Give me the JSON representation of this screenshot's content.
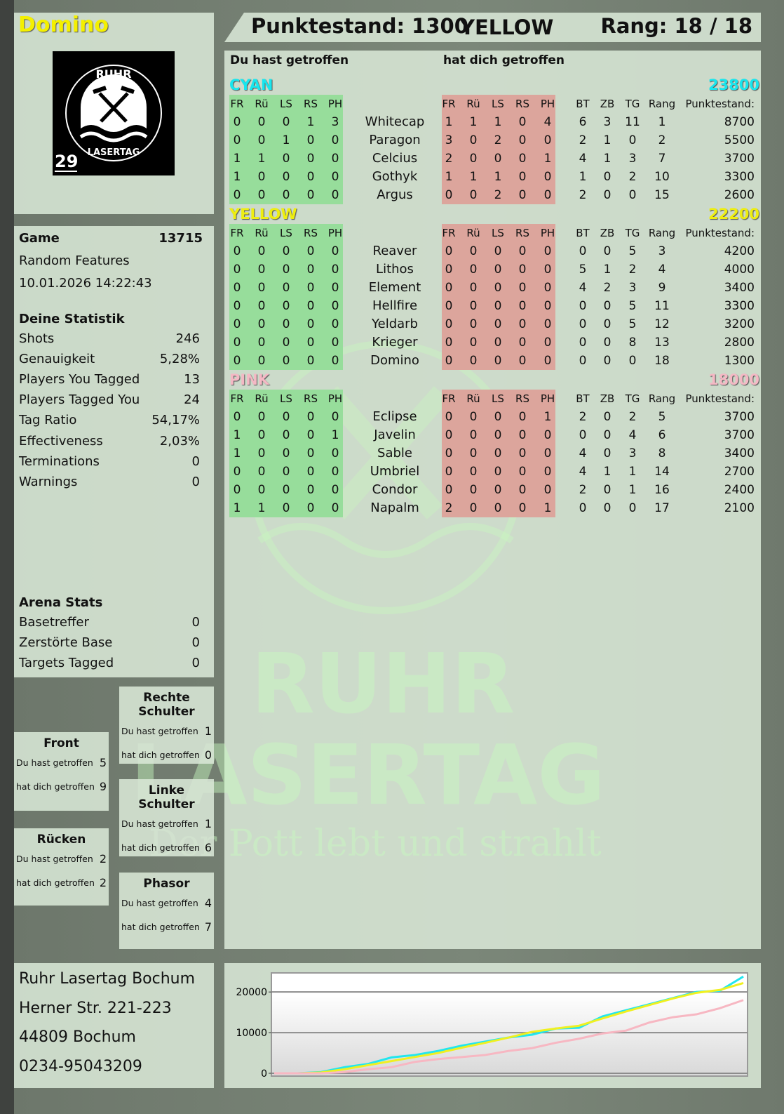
{
  "player": {
    "name": "Domino",
    "logo_text": "RUHR LASERTAG",
    "logo_number": "29"
  },
  "header": {
    "score": "Punktestand: 1300",
    "team": "YELLOW",
    "rank": "Rang: 18 / 18"
  },
  "watermark": {
    "line1": "RUHR",
    "line2": "LASERTAG",
    "slogan": "Der Pott lebt und strahlt"
  },
  "game": {
    "label": "Game",
    "id": "13715",
    "mode": "Random Features",
    "datetime": "10.01.2026 14:22:43"
  },
  "stats": {
    "title": "Deine Statistik",
    "items": [
      {
        "label": "Shots",
        "value": "246"
      },
      {
        "label": "Genauigkeit",
        "value": "5,28%"
      },
      {
        "label": "Players You Tagged",
        "value": "13"
      },
      {
        "label": "Players Tagged You",
        "value": "24"
      },
      {
        "label": "Tag Ratio",
        "value": "54,17%"
      },
      {
        "label": "Effectiveness",
        "value": "2,03%"
      },
      {
        "label": "Terminations",
        "value": "0"
      },
      {
        "label": "Warnings",
        "value": "0"
      }
    ]
  },
  "arena": {
    "title": "Arena Stats",
    "items": [
      {
        "label": "Basetreffer",
        "value": "0"
      },
      {
        "label": "Zerstörte Base",
        "value": "0"
      },
      {
        "label": "Targets Tagged",
        "value": "0"
      }
    ]
  },
  "zones": [
    {
      "title": "Rechte Schulter",
      "you_hit_label": "Du hast getroffen",
      "you_hit": "1",
      "hit_you_label": "hat dich getroffen",
      "hit_you": "0"
    },
    {
      "title": "Front",
      "you_hit_label": "Du hast getroffen",
      "you_hit": "5",
      "hit_you_label": "hat dich getroffen",
      "hit_you": "9"
    },
    {
      "title": "Linke Schulter",
      "you_hit_label": "Du hast getroffen",
      "you_hit": "1",
      "hit_you_label": "hat dich getroffen",
      "hit_you": "6"
    },
    {
      "title": "Rücken",
      "you_hit_label": "Du hast getroffen",
      "you_hit": "2",
      "hit_you_label": "hat dich getroffen",
      "hit_you": "2"
    },
    {
      "title": "Phasor",
      "you_hit_label": "Du hast getroffen",
      "you_hit": "4",
      "hit_you_label": "hat dich getroffen",
      "hit_you": "7"
    }
  ],
  "address": [
    "Ruhr Lasertag Bochum",
    "Herner Str. 221-223",
    "44809 Bochum",
    "0234-95043209"
  ],
  "table": {
    "you_hit_title": "Du hast getroffen",
    "hit_you_title": "hat dich getroffen",
    "hit_cols": [
      "FR",
      "Rü",
      "LS",
      "RS",
      "PH"
    ],
    "stat_cols": [
      "BT",
      "ZB",
      "TG",
      "Rang"
    ],
    "score_col": "Punktestand:",
    "colors": {
      "green": "#97dd9b",
      "red": "#dca59c"
    },
    "teams": [
      {
        "name": "CYAN",
        "score": "23800",
        "color": "#18e6ee",
        "players": [
          {
            "name": "Whitecap",
            "you_hit": [
              "0",
              "0",
              "0",
              "1",
              "3"
            ],
            "hit_you": [
              "1",
              "1",
              "1",
              "0",
              "4"
            ],
            "stats": [
              "6",
              "3",
              "11",
              "1"
            ],
            "score": "8700"
          },
          {
            "name": "Paragon",
            "you_hit": [
              "0",
              "0",
              "1",
              "0",
              "0"
            ],
            "hit_you": [
              "3",
              "0",
              "2",
              "0",
              "0"
            ],
            "stats": [
              "2",
              "1",
              "0",
              "2"
            ],
            "score": "5500"
          },
          {
            "name": "Celcius",
            "you_hit": [
              "1",
              "1",
              "0",
              "0",
              "0"
            ],
            "hit_you": [
              "2",
              "0",
              "0",
              "0",
              "1"
            ],
            "stats": [
              "4",
              "1",
              "3",
              "7"
            ],
            "score": "3700"
          },
          {
            "name": "Gothyk",
            "you_hit": [
              "1",
              "0",
              "0",
              "0",
              "0"
            ],
            "hit_you": [
              "1",
              "1",
              "1",
              "0",
              "0"
            ],
            "stats": [
              "1",
              "0",
              "2",
              "10"
            ],
            "score": "3300"
          },
          {
            "name": "Argus",
            "you_hit": [
              "0",
              "0",
              "0",
              "0",
              "0"
            ],
            "hit_you": [
              "0",
              "0",
              "2",
              "0",
              "0"
            ],
            "stats": [
              "2",
              "0",
              "0",
              "15"
            ],
            "score": "2600"
          }
        ]
      },
      {
        "name": "YELLOW",
        "score": "22200",
        "color": "#eeee10",
        "players": [
          {
            "name": "Reaver",
            "you_hit": [
              "0",
              "0",
              "0",
              "0",
              "0"
            ],
            "hit_you": [
              "0",
              "0",
              "0",
              "0",
              "0"
            ],
            "stats": [
              "0",
              "0",
              "5",
              "3"
            ],
            "score": "4200"
          },
          {
            "name": "Lithos",
            "you_hit": [
              "0",
              "0",
              "0",
              "0",
              "0"
            ],
            "hit_you": [
              "0",
              "0",
              "0",
              "0",
              "0"
            ],
            "stats": [
              "5",
              "1",
              "2",
              "4"
            ],
            "score": "4000"
          },
          {
            "name": "Element",
            "you_hit": [
              "0",
              "0",
              "0",
              "0",
              "0"
            ],
            "hit_you": [
              "0",
              "0",
              "0",
              "0",
              "0"
            ],
            "stats": [
              "4",
              "2",
              "3",
              "9"
            ],
            "score": "3400"
          },
          {
            "name": "Hellfire",
            "you_hit": [
              "0",
              "0",
              "0",
              "0",
              "0"
            ],
            "hit_you": [
              "0",
              "0",
              "0",
              "0",
              "0"
            ],
            "stats": [
              "0",
              "0",
              "5",
              "11"
            ],
            "score": "3300"
          },
          {
            "name": "Yeldarb",
            "you_hit": [
              "0",
              "0",
              "0",
              "0",
              "0"
            ],
            "hit_you": [
              "0",
              "0",
              "0",
              "0",
              "0"
            ],
            "stats": [
              "0",
              "0",
              "5",
              "12"
            ],
            "score": "3200"
          },
          {
            "name": "Krieger",
            "you_hit": [
              "0",
              "0",
              "0",
              "0",
              "0"
            ],
            "hit_you": [
              "0",
              "0",
              "0",
              "0",
              "0"
            ],
            "stats": [
              "0",
              "0",
              "8",
              "13"
            ],
            "score": "2800"
          },
          {
            "name": "Domino",
            "you_hit": [
              "0",
              "0",
              "0",
              "0",
              "0"
            ],
            "hit_you": [
              "0",
              "0",
              "0",
              "0",
              "0"
            ],
            "stats": [
              "0",
              "0",
              "0",
              "18"
            ],
            "score": "1300"
          }
        ]
      },
      {
        "name": "PINK",
        "score": "18000",
        "color": "#f4b8c4",
        "players": [
          {
            "name": "Eclipse",
            "you_hit": [
              "0",
              "0",
              "0",
              "0",
              "0"
            ],
            "hit_you": [
              "0",
              "0",
              "0",
              "0",
              "1"
            ],
            "stats": [
              "2",
              "0",
              "2",
              "5"
            ],
            "score": "3700"
          },
          {
            "name": "Javelin",
            "you_hit": [
              "1",
              "0",
              "0",
              "0",
              "1"
            ],
            "hit_you": [
              "0",
              "0",
              "0",
              "0",
              "0"
            ],
            "stats": [
              "0",
              "0",
              "4",
              "6"
            ],
            "score": "3700"
          },
          {
            "name": "Sable",
            "you_hit": [
              "1",
              "0",
              "0",
              "0",
              "0"
            ],
            "hit_you": [
              "0",
              "0",
              "0",
              "0",
              "0"
            ],
            "stats": [
              "4",
              "0",
              "3",
              "8"
            ],
            "score": "3400"
          },
          {
            "name": "Umbriel",
            "you_hit": [
              "0",
              "0",
              "0",
              "0",
              "0"
            ],
            "hit_you": [
              "0",
              "0",
              "0",
              "0",
              "0"
            ],
            "stats": [
              "4",
              "1",
              "1",
              "14"
            ],
            "score": "2700"
          },
          {
            "name": "Condor",
            "you_hit": [
              "0",
              "0",
              "0",
              "0",
              "0"
            ],
            "hit_you": [
              "0",
              "0",
              "0",
              "0",
              "0"
            ],
            "stats": [
              "2",
              "0",
              "1",
              "16"
            ],
            "score": "2400"
          },
          {
            "name": "Napalm",
            "you_hit": [
              "1",
              "1",
              "0",
              "0",
              "0"
            ],
            "hit_you": [
              "2",
              "0",
              "0",
              "0",
              "1"
            ],
            "stats": [
              "0",
              "0",
              "0",
              "17"
            ],
            "score": "2100"
          }
        ]
      }
    ]
  },
  "chart_data": {
    "type": "line",
    "ylim": [
      0,
      24000
    ],
    "yticks": [
      0,
      10000,
      20000
    ],
    "yticklabels": [
      "0",
      "10000",
      "20000"
    ],
    "grid": true,
    "x": [
      0,
      1,
      2,
      3,
      4,
      5,
      6,
      7,
      8,
      9,
      10,
      11,
      12,
      13,
      14,
      15,
      16,
      17,
      18,
      19,
      20
    ],
    "series": [
      {
        "color": "#22e6ee",
        "values": [
          0,
          0,
          300,
          1500,
          2300,
          3900,
          4500,
          5500,
          6800,
          7800,
          8800,
          9500,
          11000,
          11200,
          14000,
          15500,
          17000,
          18500,
          20000,
          20300,
          23800
        ]
      },
      {
        "color": "#f0f020",
        "values": [
          0,
          0,
          200,
          1000,
          2000,
          3000,
          4000,
          5000,
          6300,
          7500,
          8800,
          10200,
          11000,
          11700,
          13500,
          15200,
          16800,
          18400,
          19800,
          20500,
          22200
        ]
      },
      {
        "color": "#f7b7c2",
        "values": [
          0,
          0,
          0,
          300,
          1000,
          1500,
          2800,
          3500,
          4000,
          4500,
          5500,
          6200,
          7500,
          8500,
          9800,
          10500,
          12500,
          13800,
          14500,
          16000,
          18000
        ]
      }
    ]
  }
}
